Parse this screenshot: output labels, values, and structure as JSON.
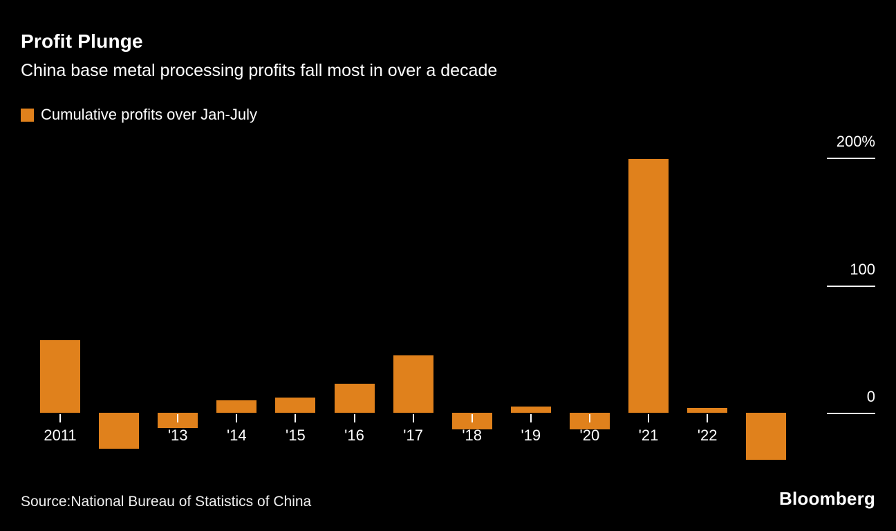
{
  "chart_data": {
    "type": "bar",
    "title": "Profit Plunge",
    "subtitle": "China base metal processing profits fall most in over a decade",
    "legend": "Cumulative profits over Jan-July",
    "unit": "%",
    "categories": [
      "2011",
      "",
      "'13",
      "'14",
      "'15",
      "'16",
      "'17",
      "'18",
      "'19",
      "'20",
      "'21",
      "'22",
      ""
    ],
    "values": [
      57,
      -28,
      -12,
      10,
      12,
      23,
      45,
      -13,
      5,
      -13,
      199,
      4,
      -37
    ],
    "ylim": [
      -45,
      220
    ],
    "yticks": [
      {
        "value": 200,
        "label": "200%"
      },
      {
        "value": 100,
        "label": "100"
      },
      {
        "value": 0,
        "label": "0"
      }
    ],
    "bar_color": "#E0811C",
    "grid": false,
    "legend_position": "top-left",
    "axis_side": "right"
  },
  "footer": {
    "source": "Source:National Bureau of Statistics of China",
    "brand": "Bloomberg"
  },
  "colors": {
    "background": "#000000",
    "text": "#FFFFFF",
    "accent": "#E0811C"
  }
}
